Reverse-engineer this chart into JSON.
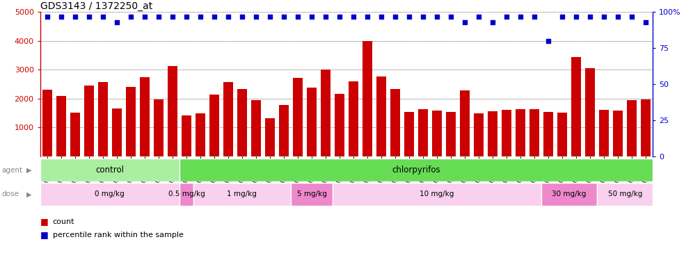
{
  "title": "GDS3143 / 1372250_at",
  "samples": [
    "GSM246129",
    "GSM246130",
    "GSM246131",
    "GSM246145",
    "GSM246146",
    "GSM246147",
    "GSM246148",
    "GSM246157",
    "GSM246158",
    "GSM246159",
    "GSM246149",
    "GSM246150",
    "GSM246151",
    "GSM246152",
    "GSM246132",
    "GSM246133",
    "GSM246134",
    "GSM246135",
    "GSM246160",
    "GSM246161",
    "GSM246162",
    "GSM246163",
    "GSM246164",
    "GSM246165",
    "GSM246166",
    "GSM246167",
    "GSM246136",
    "GSM246137",
    "GSM246138",
    "GSM246139",
    "GSM246140",
    "GSM246168",
    "GSM246169",
    "GSM246170",
    "GSM246171",
    "GSM246154",
    "GSM246155",
    "GSM246156",
    "GSM246172",
    "GSM246173",
    "GSM246141",
    "GSM246142",
    "GSM246143",
    "GSM246144"
  ],
  "counts": [
    2310,
    2090,
    1520,
    2440,
    2570,
    1650,
    2410,
    2740,
    1960,
    3130,
    1420,
    1480,
    2140,
    2580,
    2340,
    1950,
    1310,
    1780,
    2720,
    2370,
    3000,
    2160,
    2600,
    4000,
    2760,
    2320,
    1530,
    1620,
    1580,
    1540,
    2280,
    1490,
    1560,
    1600,
    1620,
    1640,
    1540,
    1500,
    3450,
    3060,
    1610,
    1590,
    1940,
    1980
  ],
  "percentiles": [
    97,
    97,
    97,
    97,
    97,
    93,
    97,
    97,
    97,
    97,
    97,
    97,
    97,
    97,
    97,
    97,
    97,
    97,
    97,
    97,
    97,
    97,
    97,
    97,
    97,
    97,
    97,
    97,
    97,
    97,
    93,
    97,
    93,
    97,
    97,
    97,
    80,
    97,
    97,
    97,
    97,
    97,
    97,
    93
  ],
  "bar_color": "#cc0000",
  "dot_color": "#0000cc",
  "ylim": [
    0,
    5000
  ],
  "y2lim": [
    0,
    100
  ],
  "yticks": [
    1000,
    2000,
    3000,
    4000,
    5000
  ],
  "y2ticks": [
    0,
    25,
    50,
    75,
    100
  ],
  "agent_groups": [
    {
      "label": "control",
      "start": 0,
      "end": 9,
      "color": "#aaeea0"
    },
    {
      "label": "chlorpyrifos",
      "start": 10,
      "end": 43,
      "color": "#66dd55"
    }
  ],
  "dose_groups": [
    {
      "label": "0 mg/kg",
      "start": 0,
      "end": 9,
      "color": "#f9d0ee"
    },
    {
      "label": "0.5 mg/kg",
      "start": 10,
      "end": 10,
      "color": "#ee88cc"
    },
    {
      "label": "1 mg/kg",
      "start": 11,
      "end": 17,
      "color": "#f9d0ee"
    },
    {
      "label": "5 mg/kg",
      "start": 18,
      "end": 20,
      "color": "#ee88cc"
    },
    {
      "label": "10 mg/kg",
      "start": 21,
      "end": 35,
      "color": "#f9d0ee"
    },
    {
      "label": "30 mg/kg",
      "start": 36,
      "end": 39,
      "color": "#ee88cc"
    },
    {
      "label": "50 mg/kg",
      "start": 40,
      "end": 43,
      "color": "#f9d0ee"
    }
  ],
  "legend_count_color": "#cc0000",
  "legend_pct_color": "#0000cc",
  "background_color": "#ffffff"
}
